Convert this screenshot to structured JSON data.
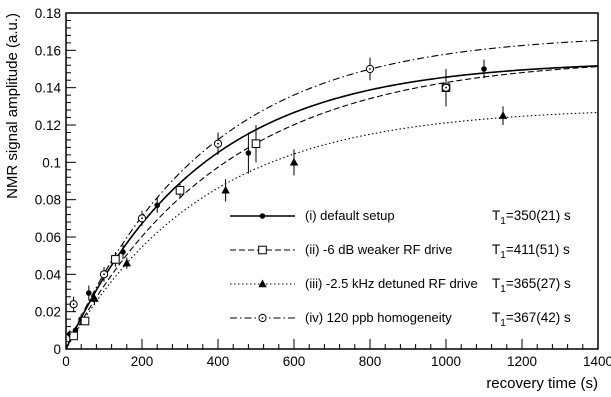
{
  "chart_data": {
    "type": "scatter",
    "xlabel": "recovery time (s)",
    "ylabel": "NMR signal amplitude (a.u.)",
    "xlim": [
      0,
      1400
    ],
    "ylim": [
      0,
      0.18
    ],
    "xticks": [
      0,
      200,
      400,
      600,
      800,
      1000,
      1200,
      1400
    ],
    "yticks": [
      0,
      0.02,
      0.04,
      0.06,
      0.08,
      0.1,
      0.12,
      0.14,
      0.16,
      0.18
    ],
    "xtick_labels": [
      "0",
      "200",
      "400",
      "600",
      "800",
      "1000",
      "1200",
      "1400"
    ],
    "ytick_labels": [
      "0",
      "0.02",
      "0.04",
      "0.06",
      "0.08",
      "0.1",
      "0.12",
      "0.14",
      "0.16",
      "0.18"
    ],
    "grid": false,
    "legend_position": "bottom-right",
    "series": [
      {
        "name": "(i)   default setup",
        "t1_label": "=350(21) s",
        "marker": "filled-circle",
        "line_style": "solid",
        "fit": {
          "A": 0.1545,
          "T1": 350
        },
        "points": [
          {
            "x": 10,
            "y": 0.008,
            "err": 0.002
          },
          {
            "x": 25,
            "y": 0.01,
            "err": 0.002
          },
          {
            "x": 40,
            "y": 0.016,
            "err": 0.003
          },
          {
            "x": 60,
            "y": 0.03,
            "err": 0.004
          },
          {
            "x": 150,
            "y": 0.052,
            "err": 0.004
          },
          {
            "x": 240,
            "y": 0.077,
            "err": 0.004
          },
          {
            "x": 480,
            "y": 0.105,
            "err": 0.011
          },
          {
            "x": 800,
            "y": 0.15,
            "err": 0.005
          },
          {
            "x": 1100,
            "y": 0.15,
            "err": 0.005
          }
        ]
      },
      {
        "name": "(ii)  -6 dB weaker RF drive",
        "t1_label": "=411(51) s",
        "marker": "open-square",
        "line_style": "dashed",
        "fit": {
          "A": 0.1565,
          "T1": 411
        },
        "points": [
          {
            "x": 20,
            "y": 0.007,
            "err": 0.002
          },
          {
            "x": 50,
            "y": 0.015,
            "err": 0.002
          },
          {
            "x": 130,
            "y": 0.048,
            "err": 0.004
          },
          {
            "x": 300,
            "y": 0.085,
            "err": 0.004
          },
          {
            "x": 500,
            "y": 0.11,
            "err": 0.01
          },
          {
            "x": 1000,
            "y": 0.14,
            "err": 0.01
          }
        ]
      },
      {
        "name": "(iii) -2.5 kHz detuned RF drive",
        "t1_label": "=365(27) s",
        "marker": "filled-triangle",
        "line_style": "dotted",
        "fit": {
          "A": 0.1295,
          "T1": 365
        },
        "points": [
          {
            "x": 75,
            "y": 0.027,
            "err": 0.003
          },
          {
            "x": 160,
            "y": 0.046,
            "err": 0.003
          },
          {
            "x": 420,
            "y": 0.085,
            "err": 0.006
          },
          {
            "x": 600,
            "y": 0.1,
            "err": 0.007
          },
          {
            "x": 1150,
            "y": 0.125,
            "err": 0.005
          }
        ]
      },
      {
        "name": "(iv)  120 ppb homogeneity",
        "t1_label": "=367(42) s",
        "marker": "open-circle-dot",
        "line_style": "dash-dot",
        "fit": {
          "A": 0.169,
          "T1": 367
        },
        "points": [
          {
            "x": 20,
            "y": 0.024,
            "err": 0.004
          },
          {
            "x": 100,
            "y": 0.04,
            "err": 0.004
          },
          {
            "x": 200,
            "y": 0.07,
            "err": 0.004
          },
          {
            "x": 400,
            "y": 0.11,
            "err": 0.006
          },
          {
            "x": 800,
            "y": 0.15,
            "err": 0.006
          },
          {
            "x": 1000,
            "y": 0.14,
            "err": 0.006
          }
        ]
      }
    ]
  },
  "legend_t_symbol": "T",
  "legend_t_subscript": "1"
}
